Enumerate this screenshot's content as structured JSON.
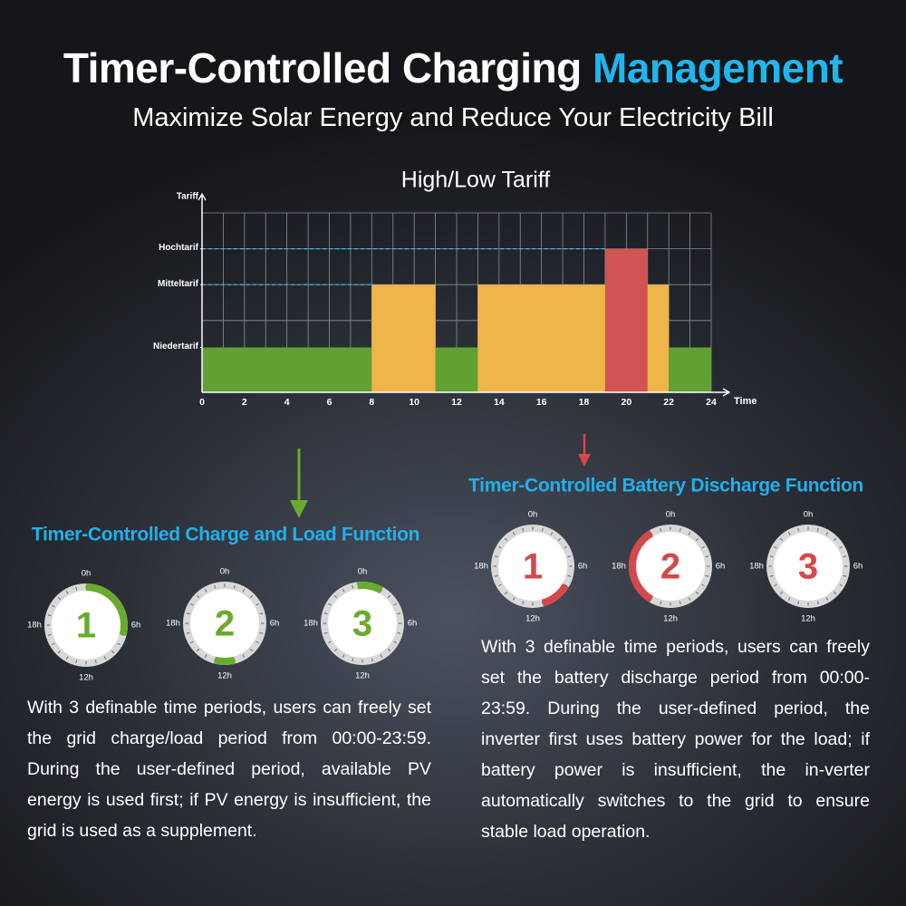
{
  "header": {
    "title": "Timer-Controlled Charging",
    "title_accent": "Management",
    "subtitle": "Maximize Solar Energy and Reduce Your Electricity Bill"
  },
  "chart_data": {
    "type": "bar",
    "title": "High/Low Tariff",
    "y_label": "Tariff",
    "x_label": "Time",
    "xlim": [
      0,
      24
    ],
    "xticks": [
      0,
      2,
      4,
      6,
      8,
      10,
      12,
      14,
      16,
      18,
      20,
      22,
      24
    ],
    "ylim": [
      0,
      5
    ],
    "yticks": [
      {
        "value": 1.25,
        "label": "Niedertarif"
      },
      {
        "value": 3,
        "label": "Mitteltarif"
      },
      {
        "value": 4,
        "label": "Hochtarif"
      }
    ],
    "grid": true,
    "segments": [
      {
        "start": 0,
        "end": 8,
        "value": 1.25,
        "color": "#62a033"
      },
      {
        "start": 8,
        "end": 11,
        "value": 3,
        "color": "#efb54a"
      },
      {
        "start": 11,
        "end": 13,
        "value": 1.25,
        "color": "#62a033"
      },
      {
        "start": 13,
        "end": 19,
        "value": 3,
        "color": "#efb54a"
      },
      {
        "start": 19,
        "end": 21,
        "value": 4,
        "color": "#d25354"
      },
      {
        "start": 21,
        "end": 22,
        "value": 3,
        "color": "#efb54a"
      },
      {
        "start": 22,
        "end": 24,
        "value": 1.25,
        "color": "#62a033"
      }
    ]
  },
  "dial_labels": [
    "0h",
    "6h",
    "12h",
    "18h"
  ],
  "sections": [
    {
      "heading": "Timer-Controlled Charge and Load Function",
      "color": "#6aab2e",
      "clocks": [
        {
          "number": "1",
          "arc": [
            0,
            7
          ]
        },
        {
          "number": "2",
          "arc": [
            11,
            13
          ]
        },
        {
          "number": "3",
          "arc": [
            23.5,
            26
          ]
        }
      ],
      "text": "With 3 definable time periods, users can freely set the grid charge/load period from 00:00-23:59. During the user-defined period, available PV energy is used first; if PV energy is insufficient, the grid is used as a supplement."
    },
    {
      "heading": "Timer-Controlled Battery Discharge Function",
      "color": "#d7474a",
      "clocks": [
        {
          "number": "1",
          "arc": [
            8,
            11
          ]
        },
        {
          "number": "2",
          "arc": [
            14,
            22
          ]
        },
        {
          "number": "3",
          "arc": null
        }
      ],
      "text": "With 3 definable time periods, users can freely set the battery discharge period from 00:00-23:59. During the user-defined period, the inverter first uses battery power for the load; if battery power is insufficient, the in-verter automatically switches to the grid to ensure stable load operation."
    }
  ]
}
